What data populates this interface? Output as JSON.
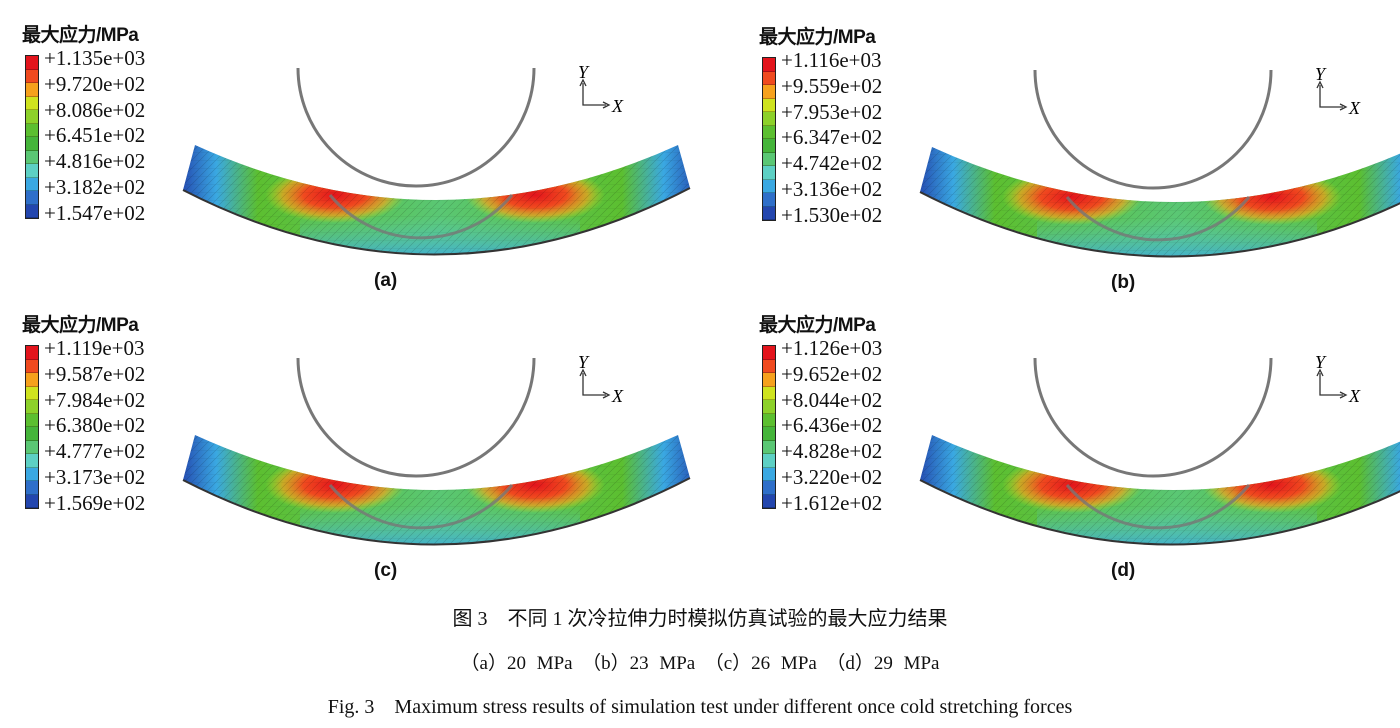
{
  "legend_title": "最大应力/MPa",
  "legend_colors": [
    "#e3141c",
    "#f04a1f",
    "#f6a11d",
    "#cfe31f",
    "#8dd12a",
    "#5cbf30",
    "#45b53a",
    "#5ac774",
    "#5dd0c4",
    "#3aa8e2",
    "#2f6fc9",
    "#2346ae"
  ],
  "axis_labels": {
    "y": "Y",
    "x": "X"
  },
  "panels": [
    {
      "label": "(a)",
      "legend_values": [
        "+1.135e+03",
        "+9.720e+02",
        "+8.086e+02",
        "+6.451e+02",
        "+4.816e+02",
        "+3.182e+02",
        "+1.547e+02"
      ]
    },
    {
      "label": "(b)",
      "legend_values": [
        "+1.116e+03",
        "+9.559e+02",
        "+7.953e+02",
        "+6.347e+02",
        "+4.742e+02",
        "+3.136e+02",
        "+1.530e+02"
      ]
    },
    {
      "label": "(c)",
      "legend_values": [
        "+1.119e+03",
        "+9.587e+02",
        "+7.984e+02",
        "+6.380e+02",
        "+4.777e+02",
        "+3.173e+02",
        "+1.569e+02"
      ]
    },
    {
      "label": "(d)",
      "legend_values": [
        "+1.126e+03",
        "+9.652e+02",
        "+8.044e+02",
        "+6.436e+02",
        "+4.828e+02",
        "+3.220e+02",
        "+1.612e+02"
      ]
    }
  ],
  "caption": {
    "cn": "图 3　不同 1 次冷拉伸力时模拟仿真试验的最大应力结果",
    "sub": "（a）20 MPa　（b）23 MPa　（c）26 MPa　（d）29 MPa",
    "en": "Fig. 3　Maximum stress results of simulation test under different once cold stretching forces"
  }
}
